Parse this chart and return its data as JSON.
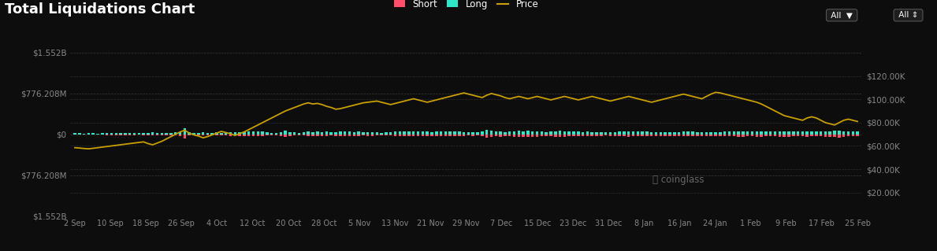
{
  "title": "Total Liquidations Chart",
  "background_color": "#0d0d0d",
  "title_color": "#ffffff",
  "title_fontsize": 13,
  "bar_width": 0.6,
  "long_color": "#2de8c8",
  "short_color": "#ff4d6a",
  "price_color": "#c8a000",
  "grid_color": "#444444",
  "tick_color": "#888888",
  "left_ylim": [
    -1552,
    1552
  ],
  "left_ytick_vals": [
    1552,
    776.208,
    0,
    -776.208,
    -1552
  ],
  "left_ytick_labels": [
    "$1.552B",
    "$776.208M",
    "$0",
    "$776.208M",
    "$1.552B"
  ],
  "right_ylim": [
    0,
    140000
  ],
  "right_ytick_vals": [
    120000,
    100000,
    80000,
    60000,
    40000,
    20000
  ],
  "right_ytick_labels": [
    "$120.00K",
    "$100.00K",
    "$80.00K",
    "$60.00K",
    "$40.00K",
    "$20.00K"
  ],
  "xtick_labels": [
    "2 Sep",
    "10 Sep",
    "18 Sep",
    "26 Sep",
    "4 Oct",
    "12 Oct",
    "20 Oct",
    "28 Oct",
    "5 Nov",
    "13 Nov",
    "21 Nov",
    "29 Nov",
    "7 Dec",
    "15 Dec",
    "23 Dec",
    "31 Dec",
    "8 Jan",
    "16 Jan",
    "24 Jan",
    "1 Feb",
    "9 Feb",
    "17 Feb",
    "25 Feb"
  ],
  "legend_labels": [
    "Short",
    "Long",
    "Price"
  ],
  "legend_colors": [
    "#ff4d6a",
    "#2de8c8",
    "#c8a000"
  ],
  "long_bars_M": [
    30,
    18,
    12,
    22,
    18,
    14,
    20,
    22,
    28,
    30,
    25,
    22,
    28,
    24,
    18,
    22,
    30,
    35,
    28,
    32,
    28,
    25,
    35,
    45,
    120,
    35,
    28,
    32,
    38,
    32,
    28,
    35,
    30,
    40,
    45,
    38,
    42,
    48,
    55,
    50,
    60,
    48,
    38,
    30,
    22,
    45,
    75,
    42,
    35,
    32,
    38,
    55,
    45,
    52,
    42,
    48,
    35,
    45,
    50,
    58,
    48,
    45,
    52,
    38,
    42,
    45,
    38,
    32,
    35,
    38,
    48,
    52,
    58,
    55,
    50,
    55,
    58,
    50,
    45,
    55,
    62,
    58,
    55,
    50,
    48,
    45,
    42,
    45,
    42,
    52,
    85,
    65,
    50,
    58,
    45,
    48,
    58,
    68,
    55,
    65,
    55,
    55,
    48,
    45,
    52,
    62,
    65,
    55,
    50,
    48,
    52,
    45,
    48,
    42,
    45,
    38,
    35,
    42,
    45,
    48,
    52,
    55,
    52,
    48,
    52,
    48,
    42,
    45,
    42,
    38,
    45,
    42,
    45,
    48,
    52,
    48,
    45,
    42,
    45,
    42,
    38,
    45,
    48,
    52,
    52,
    58,
    55,
    52,
    48,
    55,
    58,
    52,
    48,
    52,
    55,
    58,
    55,
    52,
    48,
    52,
    55,
    52,
    48,
    52,
    55,
    58,
    65,
    72,
    58,
    52,
    48,
    52
  ],
  "short_bars_M": [
    12,
    10,
    8,
    12,
    10,
    8,
    12,
    15,
    18,
    22,
    18,
    15,
    18,
    15,
    12,
    14,
    20,
    25,
    20,
    22,
    18,
    16,
    22,
    30,
    80,
    24,
    18,
    22,
    25,
    22,
    18,
    22,
    18,
    25,
    30,
    25,
    28,
    32,
    36,
    32,
    40,
    30,
    25,
    20,
    14,
    28,
    50,
    28,
    22,
    20,
    24,
    35,
    30,
    35,
    28,
    32,
    22,
    28,
    32,
    38,
    30,
    28,
    35,
    25,
    28,
    30,
    25,
    20,
    22,
    25,
    30,
    35,
    40,
    36,
    32,
    36,
    40,
    32,
    28,
    36,
    42,
    38,
    35,
    32,
    30,
    28,
    25,
    28,
    26,
    34,
    72,
    52,
    40,
    48,
    35,
    38,
    46,
    55,
    44,
    52,
    44,
    44,
    38,
    35,
    42,
    50,
    52,
    44,
    40,
    38,
    42,
    35,
    38,
    32,
    35,
    28,
    25,
    32,
    35,
    38,
    42,
    45,
    42,
    38,
    42,
    38,
    32,
    35,
    32,
    28,
    35,
    32,
    35,
    38,
    42,
    38,
    35,
    32,
    35,
    32,
    28,
    35,
    38,
    42,
    42,
    48,
    45,
    42,
    38,
    44,
    48,
    42,
    38,
    42,
    44,
    48,
    45,
    42,
    38,
    42,
    45,
    42,
    38,
    42,
    44,
    48,
    55,
    62,
    48,
    42,
    38,
    42
  ],
  "price_line": [
    58500,
    58200,
    57800,
    57500,
    58000,
    58500,
    59000,
    59500,
    60000,
    60500,
    61000,
    61500,
    62000,
    62500,
    63000,
    63500,
    62000,
    61000,
    62500,
    64000,
    66000,
    68000,
    70000,
    72000,
    73500,
    71000,
    69500,
    68500,
    67000,
    68000,
    69500,
    71000,
    72500,
    71500,
    70500,
    69000,
    70500,
    72000,
    74000,
    76000,
    78000,
    80000,
    82000,
    84000,
    86000,
    88000,
    90000,
    91500,
    93000,
    94500,
    96000,
    97000,
    96000,
    96500,
    95500,
    94000,
    93000,
    91500,
    92000,
    93000,
    94000,
    95000,
    96000,
    97000,
    97500,
    98000,
    98500,
    97500,
    96500,
    95500,
    96500,
    97500,
    98500,
    99500,
    100500,
    99500,
    98500,
    97500,
    98500,
    99500,
    100500,
    101500,
    102500,
    103500,
    104500,
    105500,
    104500,
    103500,
    102500,
    101500,
    103500,
    105000,
    104000,
    103000,
    101500,
    100500,
    101500,
    102500,
    101500,
    100500,
    101500,
    102500,
    101500,
    100500,
    99500,
    100500,
    101500,
    102500,
    101500,
    100500,
    99500,
    100500,
    101500,
    102500,
    101500,
    100500,
    99500,
    98500,
    99500,
    100500,
    101500,
    102500,
    101500,
    100500,
    99500,
    98500,
    97500,
    98500,
    99500,
    100500,
    101500,
    102500,
    103500,
    104500,
    103500,
    102500,
    101500,
    100500,
    102500,
    104500,
    106000,
    105500,
    104500,
    103500,
    102500,
    101500,
    100500,
    99500,
    98500,
    97500,
    96000,
    94000,
    92000,
    90000,
    88000,
    86000,
    85000,
    84000,
    83000,
    82000,
    84000,
    85000,
    84000,
    82000,
    80000,
    79000,
    78000,
    80000,
    82000,
    83000,
    82000,
    81000
  ]
}
